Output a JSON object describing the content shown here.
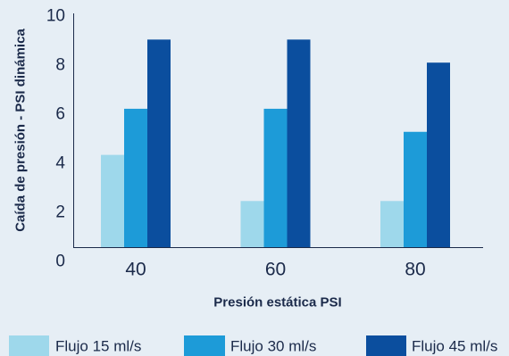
{
  "chart_data": {
    "type": "bar",
    "xlabel": "Presión estática PSI",
    "ylabel": "Caída de presión - PSI dinámica",
    "categories": [
      "40",
      "60",
      "80"
    ],
    "ylim": [
      0,
      10
    ],
    "yticks": [
      0,
      2,
      4,
      6,
      8,
      10
    ],
    "grid": false,
    "legend_position": "bottom",
    "series": [
      {
        "name": "Flujo 15 ml/s",
        "values": [
          4,
          2,
          2
        ],
        "color": "#9ed8eb"
      },
      {
        "name": "Flujo 30 ml/s",
        "values": [
          6,
          6,
          5
        ],
        "color": "#1d9bd8"
      },
      {
        "name": "Flujo 45 ml/s",
        "values": [
          9,
          9,
          8
        ],
        "color": "#0b4e9e"
      }
    ]
  },
  "colors": {
    "background": "#e6eef5",
    "text": "#1b2a4a",
    "axis": "#1b2a4a"
  }
}
